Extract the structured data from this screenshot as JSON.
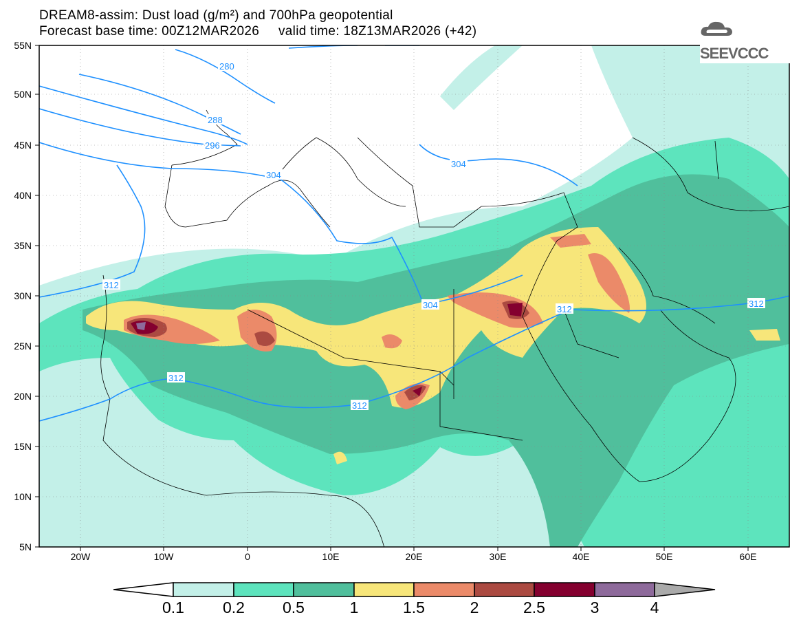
{
  "header": {
    "title": "DREAM8-assim: Dust load (g/m²) and 700hPa geopotential",
    "base_time": "Forecast base time: 00Z12MAR2026",
    "valid_time": "valid time: 18Z13MAR2026 (+42)"
  },
  "logo": {
    "text": "SEEVCCC",
    "icon": "cloud-icon"
  },
  "axes": {
    "lat_labels": [
      "55N",
      "50N",
      "45N",
      "40N",
      "35N",
      "30N",
      "25N",
      "20N",
      "15N",
      "10N",
      "5N"
    ],
    "lon_labels": [
      "20W",
      "10W",
      "0",
      "10E",
      "20E",
      "30E",
      "40E",
      "50E",
      "60E"
    ]
  },
  "contours": {
    "labels": [
      "280",
      "288",
      "296",
      "304",
      "304",
      "304",
      "312",
      "312",
      "312",
      "312",
      "312"
    ],
    "color": "#1e90ff"
  },
  "colorbar": {
    "labels": [
      "0.1",
      "0.2",
      "0.5",
      "1",
      "1.5",
      "2",
      "2.5",
      "3",
      "4"
    ],
    "colors": [
      "#c3f0e8",
      "#5de4bd",
      "#50bf9c",
      "#f7e67a",
      "#eb8a69",
      "#ab4a41",
      "#84002f",
      "#8e6a9b",
      "#aaaaaa"
    ]
  }
}
